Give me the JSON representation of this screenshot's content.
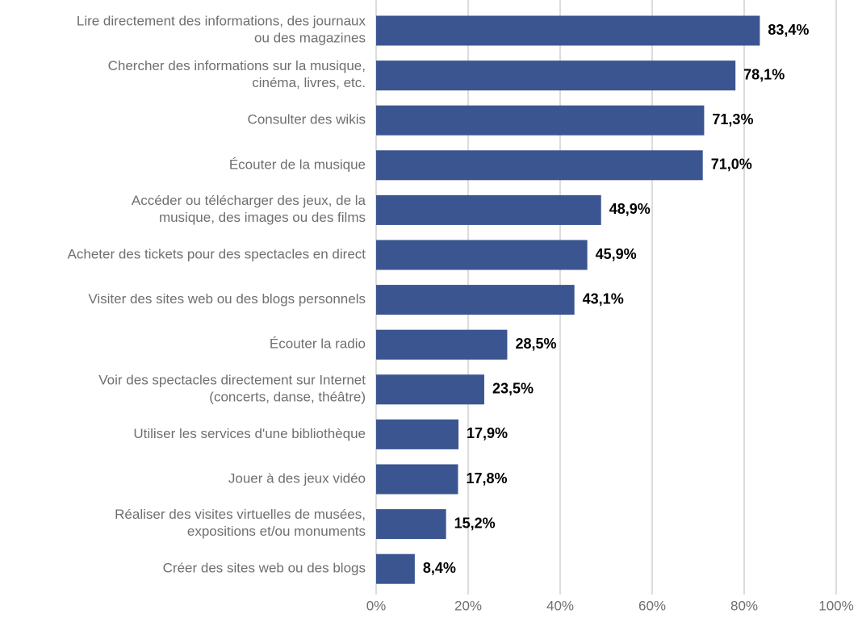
{
  "chart_data": {
    "type": "bar",
    "orientation": "horizontal",
    "categories": [
      "Lire directement des informations, des journaux\nou des magazines",
      "Chercher des informations sur la musique,\ncinéma, livres, etc.",
      "Consulter des wikis",
      "Écouter de la musique",
      "Accéder ou télécharger des jeux, de la\nmusique, des images ou des films",
      "Acheter des tickets pour des spectacles en direct",
      "Visiter des sites web ou des blogs personnels",
      "Écouter la radio",
      "Voir des spectacles directement sur Internet\n(concerts, danse, théâtre)",
      "Utiliser les services d'une bibliothèque",
      "Jouer à des jeux vidéo",
      "Réaliser des visites virtuelles de musées,\nexpositions et/ou monuments",
      "Créer des sites web ou des blogs"
    ],
    "values": [
      83.4,
      78.1,
      71.3,
      71.0,
      48.9,
      45.9,
      43.1,
      28.5,
      23.5,
      17.9,
      17.8,
      15.2,
      8.4
    ],
    "value_labels": [
      "83,4%",
      "78,1%",
      "71,3%",
      "71,0%",
      "48,9%",
      "45,9%",
      "43,1%",
      "28,5%",
      "23,5%",
      "17,9%",
      "17,8%",
      "15,2%",
      "8,4%"
    ],
    "color": "#3a5590",
    "xlim": [
      0,
      100
    ],
    "xticks": [
      {
        "value": 0,
        "label": "0%"
      },
      {
        "value": 20,
        "label": "20%"
      },
      {
        "value": 40,
        "label": "40%"
      },
      {
        "value": 60,
        "label": "60%"
      },
      {
        "value": 80,
        "label": "80%"
      },
      {
        "value": 100,
        "label": "100%"
      }
    ],
    "grid": true
  }
}
